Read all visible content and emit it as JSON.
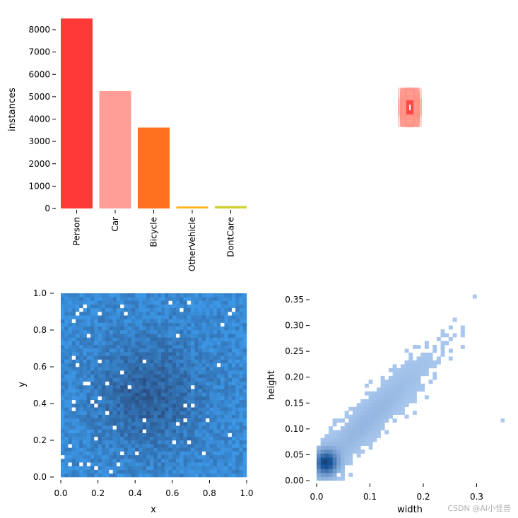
{
  "chart_data": [
    {
      "type": "bar",
      "categories": [
        "Person",
        "Car",
        "Bicycle",
        "OtherVehicle",
        "DontCare"
      ],
      "values": [
        8500,
        5250,
        3620,
        90,
        110
      ],
      "colors": [
        "#ff3838",
        "#ff9d97",
        "#ff701f",
        "#ffb21d",
        "#cfd231"
      ],
      "ylabel": "instances",
      "ylim": [
        0,
        8500
      ],
      "yticks": [
        "0",
        "1000",
        "2000",
        "3000",
        "4000",
        "5000",
        "6000",
        "7000",
        "8000"
      ]
    },
    {
      "type": "heatmap",
      "note": "overlaid normalized bounding-box outlines",
      "colors": [
        "#ff8c80",
        "#ff3838",
        "#ffcfa0"
      ]
    },
    {
      "type": "heatmap",
      "xlabel": "x",
      "ylabel": "y",
      "xlim": [
        0.0,
        1.0
      ],
      "ylim": [
        0.0,
        1.0
      ],
      "xticks": [
        "0.0",
        "0.2",
        "0.4",
        "0.6",
        "0.8",
        "1.0"
      ],
      "yticks": [
        "0.0",
        "0.2",
        "0.4",
        "0.6",
        "0.8",
        "1.0"
      ],
      "colors": [
        "#3c97e6",
        "#2b4a6e"
      ]
    },
    {
      "type": "heatmap",
      "xlabel": "width",
      "ylabel": "height",
      "xlim": [
        0.0,
        0.35
      ],
      "ylim": [
        0.0,
        0.355
      ],
      "xticks": [
        "0.0",
        "0.1",
        "0.2",
        "0.3"
      ],
      "yticks": [
        "0.00",
        "0.05",
        "0.10",
        "0.15",
        "0.20",
        "0.25",
        "0.30",
        "0.35"
      ],
      "colors": [
        "#aac8ee",
        "#1f5fa8"
      ]
    }
  ],
  "watermark": "CSDN @AI小怪兽"
}
